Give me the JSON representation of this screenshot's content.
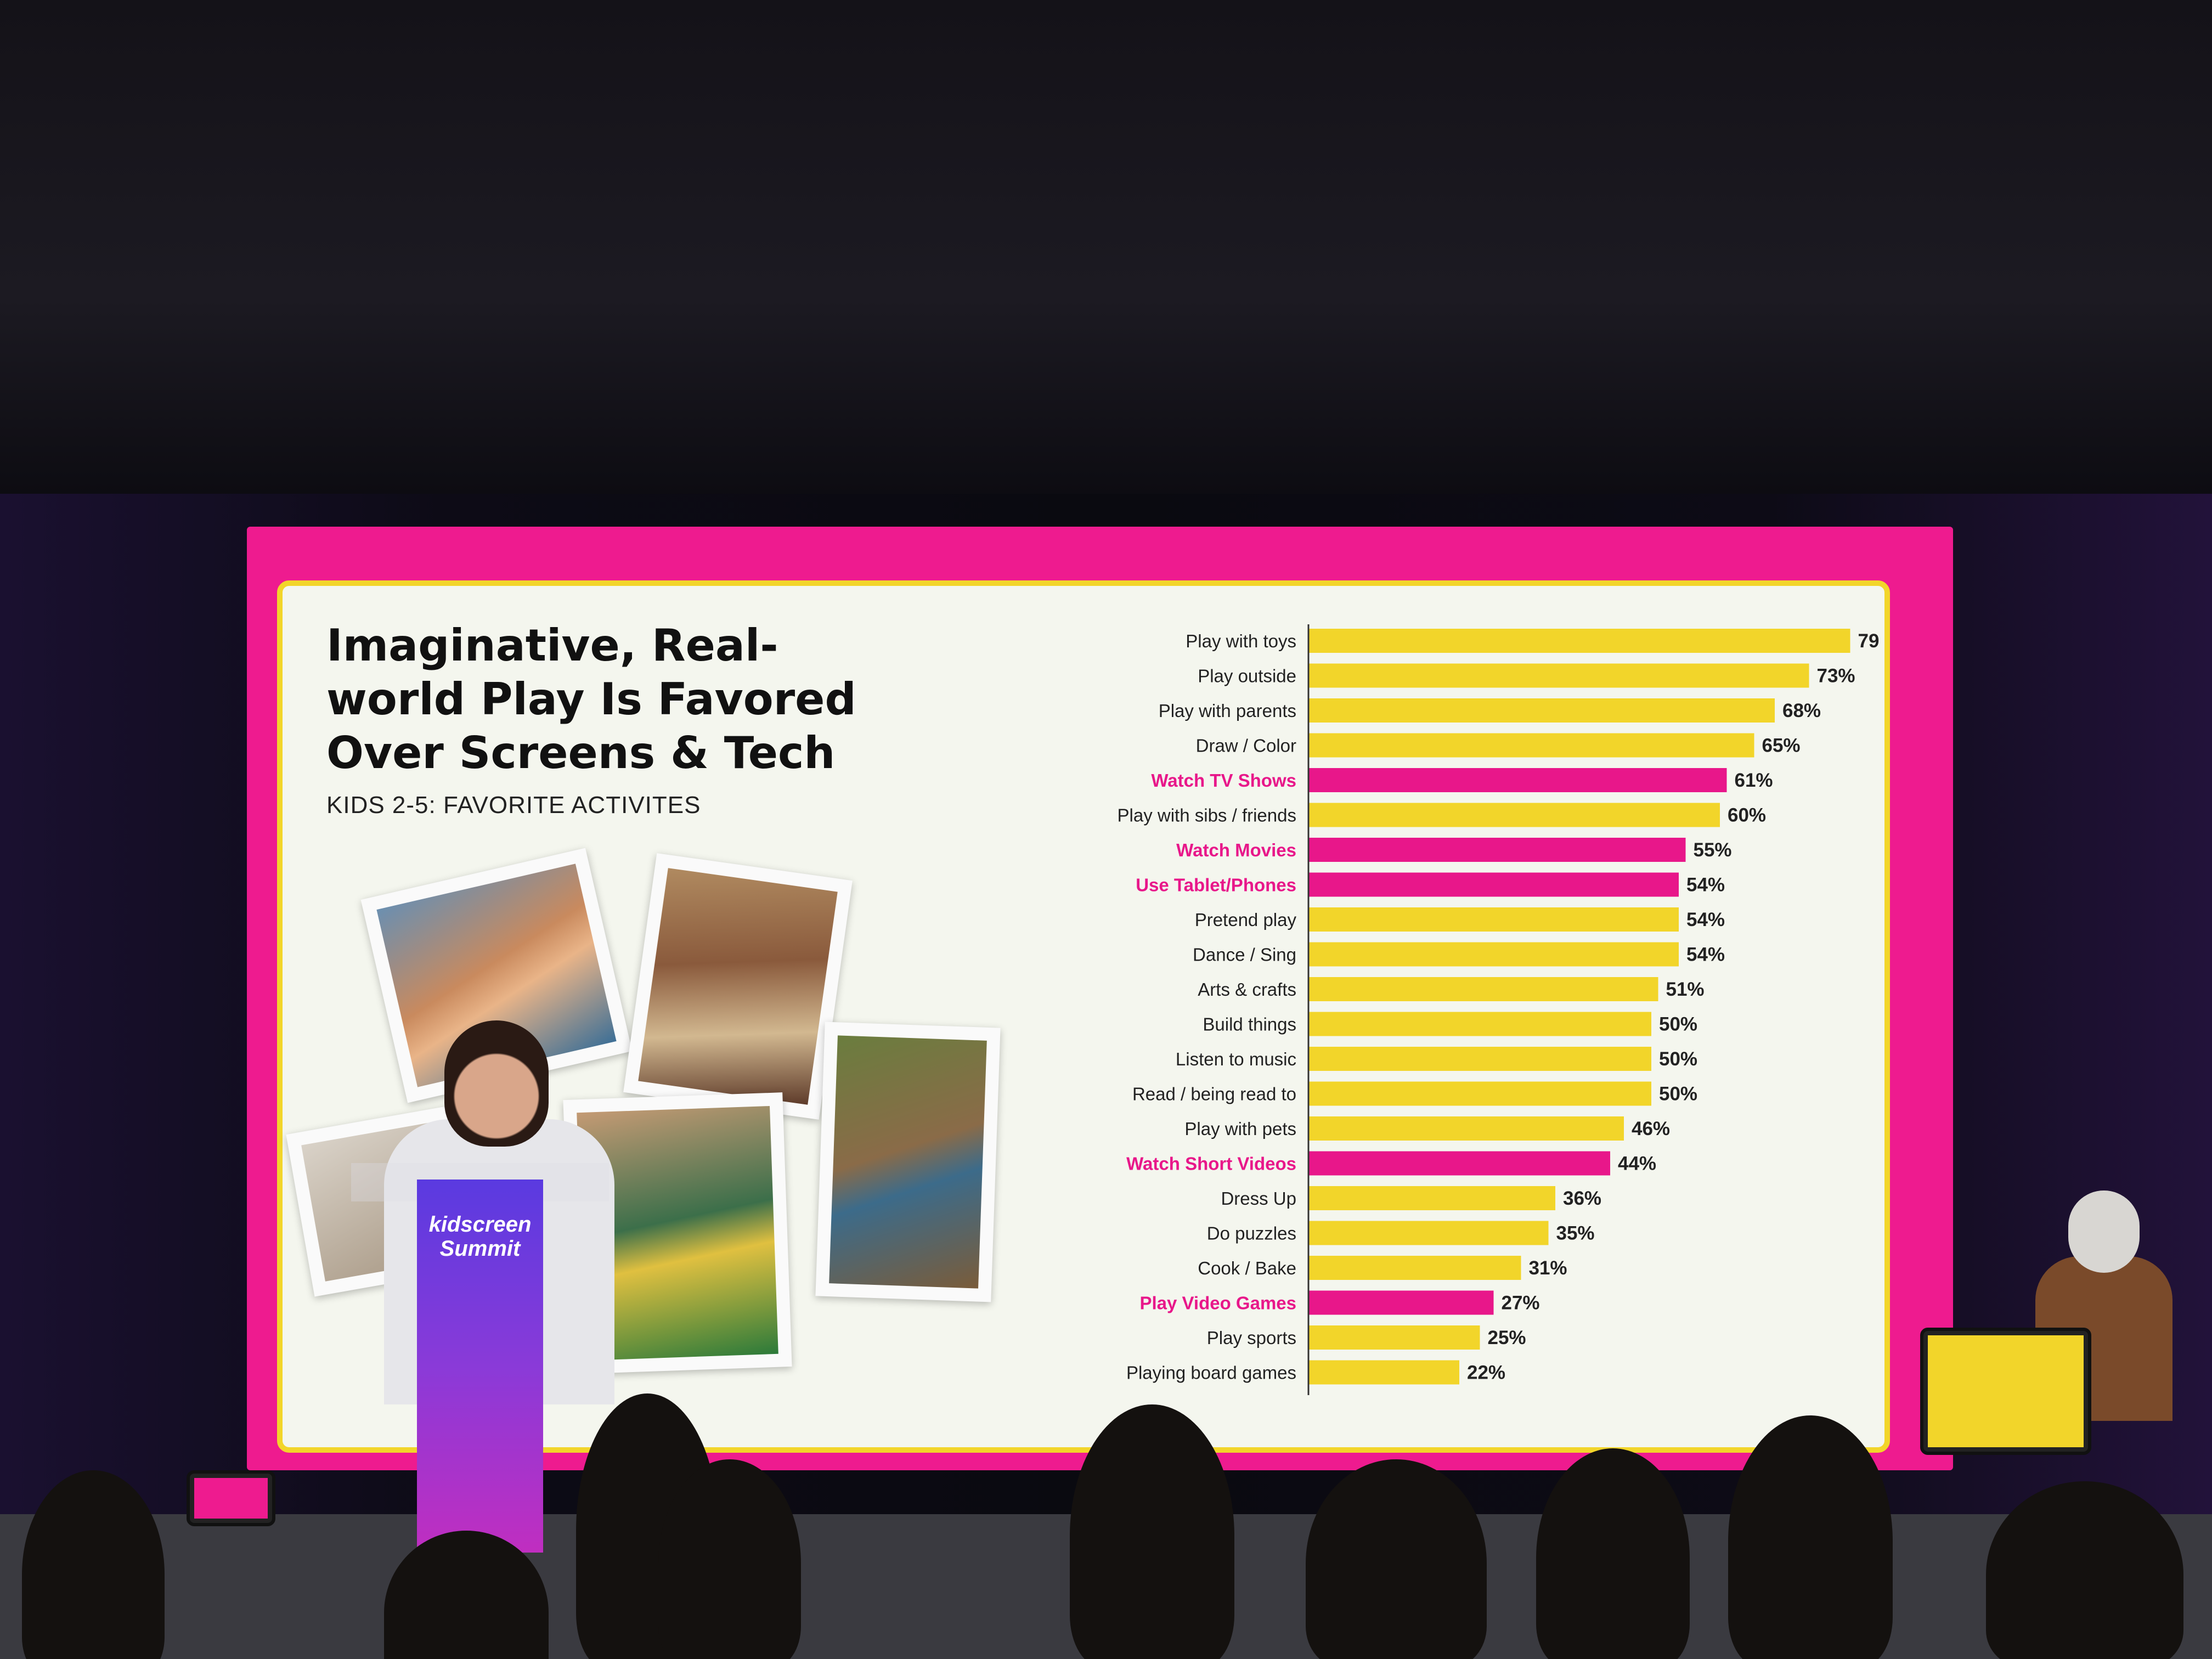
{
  "slide": {
    "title": "Imaginative, Real-\nworld Play Is Favored\nOver Screens & Tech",
    "subtitle": "KIDS 2-5: FAVORITE ACTIVITES"
  },
  "podium": {
    "logo_line1": "kidscreen",
    "logo_line2": "Summit"
  },
  "colors": {
    "frame_pink": "#ee1b8f",
    "bar_yellow": "#f2d52a",
    "bar_pink": "#e8178a",
    "label_dark": "#222222",
    "label_pink": "#e8178a",
    "slide_bg": "#f4f6ee"
  },
  "chart_data": {
    "type": "bar",
    "orientation": "horizontal",
    "title": "Imaginative, Real-world Play Is Favored Over Screens & Tech",
    "subtitle": "KIDS 2-5: FAVORITE ACTIVITES",
    "xlabel": "",
    "ylabel": "",
    "xlim": [
      0,
      100
    ],
    "unit": "%",
    "categories": [
      "Play with toys",
      "Play outside",
      "Play with parents",
      "Draw / Color",
      "Watch TV Shows",
      "Play with sibs / friends",
      "Watch Movies",
      "Use Tablet/Phones",
      "Pretend play",
      "Dance / Sing",
      "Arts & crafts",
      "Build things",
      "Listen to music",
      "Read / being read to",
      "Play with pets",
      "Watch Short Videos",
      "Dress Up",
      "Do puzzles",
      "Cook / Bake",
      "Play Video Games",
      "Play sports",
      "Playing board games"
    ],
    "values": [
      79,
      73,
      68,
      65,
      61,
      60,
      55,
      54,
      54,
      54,
      51,
      50,
      50,
      50,
      46,
      44,
      36,
      35,
      31,
      27,
      25,
      22
    ],
    "highlighted": [
      false,
      false,
      false,
      false,
      true,
      false,
      true,
      true,
      false,
      false,
      false,
      false,
      false,
      false,
      false,
      true,
      false,
      false,
      false,
      true,
      false,
      false
    ]
  }
}
